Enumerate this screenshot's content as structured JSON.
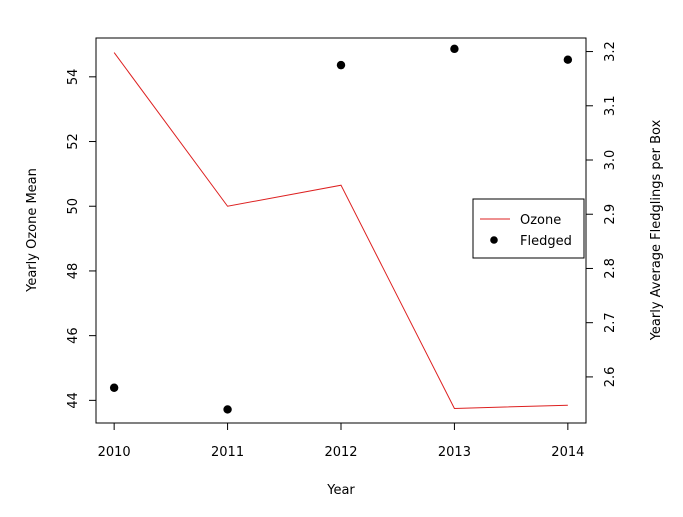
{
  "chart_data": {
    "type": "line",
    "title": "",
    "xlabel": "Year",
    "ylabel_left": "Yearly Ozone Mean",
    "ylabel_right": "Yearly Average Fledglings per Box",
    "x": [
      2010,
      2011,
      2012,
      2013,
      2014
    ],
    "x_ticks": [
      "2010",
      "2011",
      "2012",
      "2013",
      "2014"
    ],
    "xlim": [
      2009.84,
      2014.16
    ],
    "y_left_ticks": [
      "44",
      "46",
      "48",
      "50",
      "52",
      "54"
    ],
    "y_left_lim": [
      43.3,
      55.2
    ],
    "y_right_ticks": [
      "2.6",
      "2.7",
      "2.8",
      "2.9",
      "3.0",
      "3.1",
      "3.2"
    ],
    "y_right_lim": [
      2.515,
      3.225
    ],
    "grid": false,
    "legend_position": "right",
    "series": [
      {
        "name": "Ozone",
        "type": "line",
        "axis": "left",
        "color": "#dd2020",
        "values": [
          54.75,
          50.0,
          50.65,
          43.75,
          43.85
        ]
      },
      {
        "name": "Fledged",
        "type": "scatter",
        "axis": "right",
        "color": "#000000",
        "values": [
          2.58,
          2.54,
          3.175,
          3.205,
          3.185
        ]
      }
    ]
  }
}
